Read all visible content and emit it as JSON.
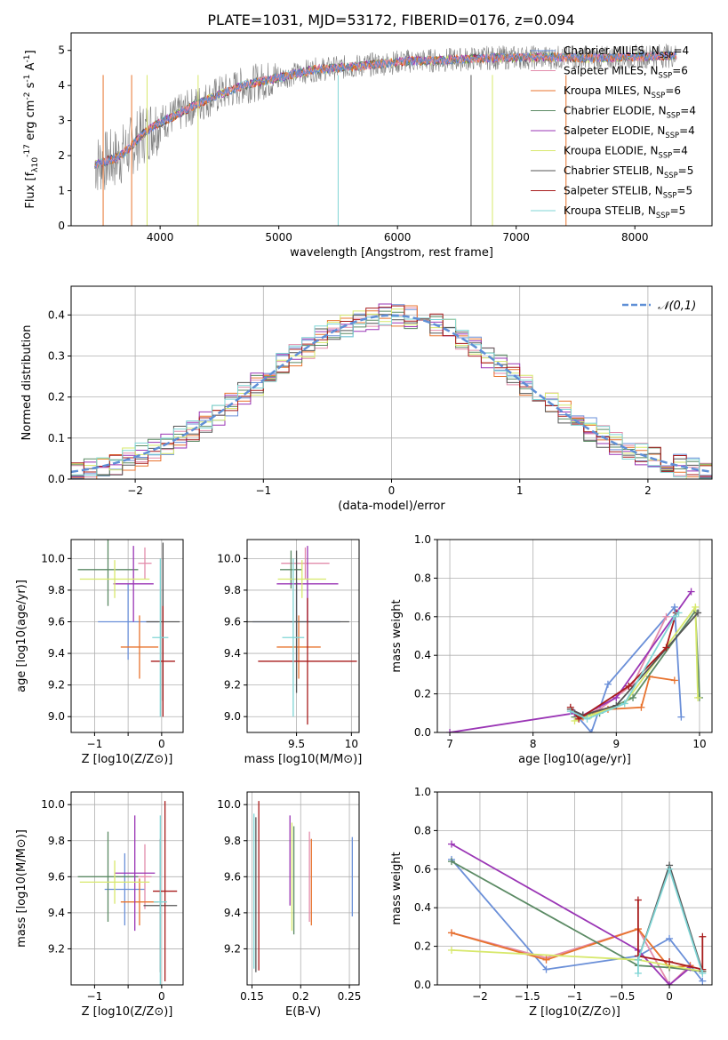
{
  "title": "PLATE=1031, MJD=53172, FIBERID=0176, z=0.094",
  "colors": {
    "chabrier_miles": "#6a8fd8",
    "salpeter_miles": "#e38cab",
    "kroupa_miles": "#e8732e",
    "chabrier_elodie": "#5b8a64",
    "salpeter_elodie": "#9a35b5",
    "kroupa_elodie": "#d7e86b",
    "chabrier_stelib": "#555555",
    "salpeter_stelib": "#a81c1c",
    "kroupa_stelib": "#7fd5d5",
    "data": "#808080",
    "normal": "#5f8fd6"
  },
  "chart_data": [
    {
      "id": "spectrum",
      "type": "line",
      "xlabel": "wavelength [Angstrom, rest frame]",
      "ylabel": "Flux [f_λ10^-17 erg cm^-2 s^-1 A^-1]",
      "xlim": [
        3250,
        8650
      ],
      "ylim": [
        0,
        5.5
      ],
      "xticks": [
        4000,
        5000,
        6000,
        7000,
        8000
      ],
      "yticks": [
        0,
        1,
        2,
        3,
        4,
        5
      ],
      "legend_position": "upper right",
      "legend": [
        {
          "label": "Chabrier MILES, N_SSP=4",
          "color": "#6a8fd8"
        },
        {
          "label": "Salpeter MILES, N_SSP=6",
          "color": "#e38cab"
        },
        {
          "label": "Kroupa MILES, N_SSP=6",
          "color": "#e8732e"
        },
        {
          "label": "Chabrier ELODIE, N_SSP=4",
          "color": "#5b8a64"
        },
        {
          "label": "Salpeter ELODIE, N_SSP=4",
          "color": "#9a35b5"
        },
        {
          "label": "Kroupa ELODIE, N_SSP=4",
          "color": "#d7e86b"
        },
        {
          "label": "Chabrier STELIB, N_SSP=5",
          "color": "#555555"
        },
        {
          "label": "Salpeter STELIB, N_SSP=5",
          "color": "#a81c1c"
        },
        {
          "label": "Kroupa STELIB, N_SSP=5",
          "color": "#7fd5d5"
        }
      ],
      "model_continuum": {
        "x": [
          3450,
          3550,
          3650,
          3750,
          3850,
          3950,
          4100,
          4300,
          4500,
          4700,
          4900,
          5100,
          5300,
          5500,
          5800,
          6100,
          6400,
          6700,
          7000,
          7300,
          7600,
          7900,
          8200,
          8350
        ],
        "y": [
          1.75,
          1.85,
          1.95,
          2.25,
          2.6,
          2.85,
          3.1,
          3.45,
          3.75,
          4.0,
          4.15,
          4.3,
          4.45,
          4.5,
          4.6,
          4.7,
          4.72,
          4.78,
          4.8,
          4.8,
          4.78,
          4.8,
          4.85,
          4.85
        ]
      }
    },
    {
      "id": "residuals",
      "type": "bar",
      "xlabel": "(data-model)/error",
      "ylabel": "Normed distribution",
      "xlim": [
        -2.5,
        2.5
      ],
      "ylim": [
        0,
        0.47
      ],
      "xticks": [
        -2,
        -1,
        0,
        1,
        2
      ],
      "yticks": [
        0.0,
        0.1,
        0.2,
        0.3,
        0.4
      ],
      "legend": [
        {
          "label": "𝒩(0,1)",
          "color": "#5f8fd6"
        }
      ],
      "legend_position": "upper right"
    },
    {
      "id": "age_vs_Z",
      "type": "scatter",
      "xlabel": "Z [log10(Z/Z⊙)]",
      "ylabel": "age  [log10(age/yr)]",
      "xlim": [
        -1.35,
        0.32
      ],
      "ylim": [
        8.9,
        10.12
      ],
      "xticks": [
        -1,
        -0.5,
        0
      ],
      "xticklabels": [
        "−1",
        "",
        "0"
      ],
      "yticks": [
        9.0,
        9.2,
        9.4,
        9.6,
        9.8,
        10.0
      ],
      "errorbars": [
        {
          "model": "chabrier_miles",
          "x": -0.5,
          "xerr": 0.45,
          "y": 9.6,
          "yerr": 0.24
        },
        {
          "model": "salpeter_miles",
          "x": -0.25,
          "xerr": 0.1,
          "y": 9.97,
          "yerr": 0.1
        },
        {
          "model": "kroupa_miles",
          "x": -0.33,
          "xerr": 0.28,
          "y": 9.44,
          "yerr": 0.2
        },
        {
          "model": "chabrier_elodie",
          "x": -0.8,
          "xerr": 0.45,
          "y": 9.93,
          "yerr": 0.23
        },
        {
          "model": "salpeter_elodie",
          "x": -0.42,
          "xerr": 0.3,
          "y": 9.84,
          "yerr": 0.24
        },
        {
          "model": "kroupa_elodie",
          "x": -0.7,
          "xerr": 0.52,
          "y": 9.87,
          "yerr": 0.12
        },
        {
          "model": "chabrier_stelib",
          "x": 0.02,
          "xerr": 0.25,
          "y": 9.6,
          "yerr": 0.5
        },
        {
          "model": "salpeter_stelib",
          "x": 0.02,
          "xerr": 0.18,
          "y": 9.35,
          "yerr": 0.35
        },
        {
          "model": "kroupa_stelib",
          "x": -0.02,
          "xerr": 0.12,
          "y": 9.5,
          "yerr": 0.5
        }
      ]
    },
    {
      "id": "age_vs_mass",
      "type": "scatter",
      "xlabel": "mass [log10(M/M⊙)]",
      "ylabel": "",
      "xlim": [
        9.05,
        10.07
      ],
      "ylim": [
        8.9,
        10.12
      ],
      "xticks": [
        9.5,
        10.0
      ],
      "yticks": [
        9.0,
        9.2,
        9.4,
        9.6,
        9.8,
        10.0
      ],
      "errorbars": [
        {
          "model": "chabrier_miles",
          "x": 9.5,
          "xerr": 0.4,
          "y": 9.6,
          "yerr": 0.25
        },
        {
          "model": "salpeter_miles",
          "x": 9.58,
          "xerr": 0.22,
          "y": 9.97,
          "yerr": 0.1
        },
        {
          "model": "kroupa_miles",
          "x": 9.52,
          "xerr": 0.2,
          "y": 9.44,
          "yerr": 0.2
        },
        {
          "model": "chabrier_elodie",
          "x": 9.45,
          "xerr": 0.1,
          "y": 9.93,
          "yerr": 0.12
        },
        {
          "model": "salpeter_elodie",
          "x": 9.6,
          "xerr": 0.28,
          "y": 9.84,
          "yerr": 0.24
        },
        {
          "model": "kroupa_elodie",
          "x": 9.55,
          "xerr": 0.22,
          "y": 9.87,
          "yerr": 0.12
        },
        {
          "model": "chabrier_stelib",
          "x": 9.5,
          "xerr": 0.48,
          "y": 9.6,
          "yerr": 0.45
        },
        {
          "model": "salpeter_stelib",
          "x": 9.6,
          "xerr": 0.45,
          "y": 9.35,
          "yerr": 0.4
        },
        {
          "model": "kroupa_stelib",
          "x": 9.47,
          "xerr": 0.1,
          "y": 9.5,
          "yerr": 0.5
        }
      ]
    },
    {
      "id": "weight_vs_age",
      "type": "line",
      "xlabel": "age  [log10(age/yr)]",
      "ylabel": "mass weight",
      "xlim": [
        6.85,
        10.15
      ],
      "ylim": [
        0,
        1
      ],
      "xticks": [
        7,
        8,
        9,
        10
      ],
      "yticks": [
        0.0,
        0.2,
        0.4,
        0.6,
        0.8,
        1.0
      ],
      "series": [
        {
          "model": "chabrier_miles",
          "x": [
            8.5,
            8.7,
            8.9,
            9.7,
            9.78
          ],
          "y": [
            0.1,
            0.0,
            0.25,
            0.65,
            0.08
          ]
        },
        {
          "model": "salpeter_miles",
          "x": [
            8.55,
            8.8,
            9.2,
            9.6
          ],
          "y": [
            0.08,
            0.12,
            0.25,
            0.6
          ]
        },
        {
          "model": "kroupa_miles",
          "x": [
            8.5,
            8.6,
            8.9,
            9.3,
            9.4,
            9.7
          ],
          "y": [
            0.1,
            0.08,
            0.12,
            0.13,
            0.29,
            0.27
          ]
        },
        {
          "model": "chabrier_elodie",
          "x": [
            8.5,
            8.8,
            9.2,
            9.95,
            10.0
          ],
          "y": [
            0.08,
            0.1,
            0.18,
            0.63,
            0.18
          ]
        },
        {
          "model": "salpeter_elodie",
          "x": [
            7.0,
            8.5,
            8.6,
            9.0,
            9.9
          ],
          "y": [
            0.0,
            0.1,
            0.09,
            0.18,
            0.73
          ]
        },
        {
          "model": "kroupa_elodie",
          "x": [
            8.5,
            8.7,
            9.1,
            9.95,
            9.98
          ],
          "y": [
            0.06,
            0.09,
            0.15,
            0.65,
            0.18
          ]
        },
        {
          "model": "chabrier_stelib",
          "x": [
            8.45,
            8.6,
            9.0,
            9.98
          ],
          "y": [
            0.12,
            0.09,
            0.14,
            0.62
          ]
        },
        {
          "model": "salpeter_stelib",
          "x": [
            8.45,
            8.55,
            9.15,
            9.6,
            9.72
          ],
          "y": [
            0.13,
            0.07,
            0.24,
            0.44,
            0.62
          ]
        },
        {
          "model": "kroupa_stelib",
          "x": [
            8.45,
            8.65,
            9.1,
            9.7,
            9.75
          ],
          "y": [
            0.11,
            0.07,
            0.15,
            0.6,
            0.62
          ]
        }
      ]
    },
    {
      "id": "mass_vs_Z",
      "type": "scatter",
      "xlabel": "Z [log10(Z/Z⊙)]",
      "ylabel": "mass [log10(M/M⊙)]",
      "xlim": [
        -1.35,
        0.32
      ],
      "ylim": [
        9.0,
        10.07
      ],
      "xticks": [
        -1,
        -0.5,
        0
      ],
      "xticklabels": [
        "−1",
        "",
        "0"
      ],
      "yticks": [
        9.2,
        9.4,
        9.6,
        9.8,
        10.0
      ],
      "errorbars": [
        {
          "model": "chabrier_miles",
          "x": -0.55,
          "xerr": 0.3,
          "y": 9.53,
          "yerr": 0.2
        },
        {
          "model": "salpeter_miles",
          "x": -0.25,
          "xerr": 0.1,
          "y": 9.6,
          "yerr": 0.18
        },
        {
          "model": "kroupa_miles",
          "x": -0.33,
          "xerr": 0.28,
          "y": 9.46,
          "yerr": 0.13
        },
        {
          "model": "chabrier_elodie",
          "x": -0.8,
          "xerr": 0.45,
          "y": 9.6,
          "yerr": 0.25
        },
        {
          "model": "salpeter_elodie",
          "x": -0.4,
          "xerr": 0.3,
          "y": 9.62,
          "yerr": 0.32
        },
        {
          "model": "kroupa_elodie",
          "x": -0.7,
          "xerr": 0.52,
          "y": 9.57,
          "yerr": 0.12
        },
        {
          "model": "chabrier_stelib",
          "x": -0.02,
          "xerr": 0.25,
          "y": 9.44,
          "yerr": 0.37
        },
        {
          "model": "salpeter_stelib",
          "x": 0.05,
          "xerr": 0.18,
          "y": 9.52,
          "yerr": 0.5
        },
        {
          "model": "kroupa_stelib",
          "x": -0.02,
          "xerr": 0.1,
          "y": 9.46,
          "yerr": 0.48
        }
      ]
    },
    {
      "id": "mass_vs_ebv",
      "type": "scatter",
      "xlabel": "E(B-V)",
      "ylabel": "",
      "xlim": [
        0.145,
        0.26
      ],
      "ylim": [
        9.0,
        10.07
      ],
      "xticks": [
        0.15,
        0.2,
        0.25
      ],
      "yticks": [
        9.2,
        9.4,
        9.6,
        9.8,
        10.0
      ],
      "errorbars": [
        {
          "model": "chabrier_miles",
          "x": 0.253,
          "xerr": 0,
          "y": 9.6,
          "yerr": 0.22
        },
        {
          "model": "salpeter_miles",
          "x": 0.209,
          "xerr": 0,
          "y": 9.6,
          "yerr": 0.25
        },
        {
          "model": "kroupa_miles",
          "x": 0.211,
          "xerr": 0,
          "y": 9.57,
          "yerr": 0.24
        },
        {
          "model": "chabrier_elodie",
          "x": 0.193,
          "xerr": 0,
          "y": 9.58,
          "yerr": 0.3
        },
        {
          "model": "salpeter_elodie",
          "x": 0.189,
          "xerr": 0,
          "y": 9.69,
          "yerr": 0.25
        },
        {
          "model": "kroupa_elodie",
          "x": 0.191,
          "xerr": 0,
          "y": 9.6,
          "yerr": 0.3
        },
        {
          "model": "chabrier_stelib",
          "x": 0.154,
          "xerr": 0,
          "y": 9.5,
          "yerr": 0.43
        },
        {
          "model": "salpeter_stelib",
          "x": 0.157,
          "xerr": 0,
          "y": 9.55,
          "yerr": 0.47
        },
        {
          "model": "kroupa_stelib",
          "x": 0.152,
          "xerr": 0,
          "y": 9.52,
          "yerr": 0.43
        }
      ]
    },
    {
      "id": "weight_vs_Z",
      "type": "line",
      "xlabel": "Z [log10(Z/Z⊙)]",
      "ylabel": "mass weight",
      "xlim": [
        -2.45,
        0.45
      ],
      "ylim": [
        0,
        1
      ],
      "xticks": [
        -2.0,
        -1.5,
        -1.0,
        -0.5,
        0.0
      ],
      "yticks": [
        0.0,
        0.2,
        0.4,
        0.6,
        0.8,
        1.0
      ],
      "series": [
        {
          "model": "chabrier_miles",
          "x": [
            -2.3,
            -1.3,
            -0.33,
            0.0,
            0.35
          ],
          "y": [
            0.65,
            0.08,
            0.15,
            0.24,
            0.02
          ]
        },
        {
          "model": "salpeter_miles",
          "x": [
            -2.3,
            -1.3,
            -0.33,
            0.0,
            0.22
          ],
          "y": [
            0.27,
            0.14,
            0.29,
            0.0,
            0.1
          ]
        },
        {
          "model": "kroupa_miles",
          "x": [
            -2.3,
            -1.3,
            -0.33,
            0.0,
            0.22
          ],
          "y": [
            0.27,
            0.13,
            0.29,
            0.09,
            0.1
          ]
        },
        {
          "model": "chabrier_elodie",
          "x": [
            -2.3,
            -0.33,
            0.0,
            0.35
          ],
          "y": [
            0.64,
            0.1,
            0.09,
            0.07
          ]
        },
        {
          "model": "salpeter_elodie",
          "x": [
            -2.3,
            -0.33,
            0.0,
            0.22
          ],
          "y": [
            0.73,
            0.18,
            0.0,
            0.09
          ]
        },
        {
          "model": "kroupa_elodie",
          "x": [
            -2.3,
            -0.33,
            0.0,
            0.35
          ],
          "y": [
            0.18,
            0.13,
            0.1,
            0.07
          ]
        },
        {
          "model": "chabrier_stelib",
          "x": [
            -0.33,
            0.0,
            0.35
          ],
          "y": [
            0.13,
            0.62,
            0.07
          ]
        },
        {
          "model": "salpeter_stelib",
          "x": [
            -0.33,
            -0.33,
            0.0,
            0.35,
            0.35
          ],
          "y": [
            0.44,
            0.15,
            0.12,
            0.08,
            0.25
          ]
        },
        {
          "model": "kroupa_stelib",
          "x": [
            -0.33,
            -0.33,
            0.0,
            0.35
          ],
          "y": [
            0.06,
            0.13,
            0.6,
            0.06
          ]
        }
      ]
    }
  ]
}
